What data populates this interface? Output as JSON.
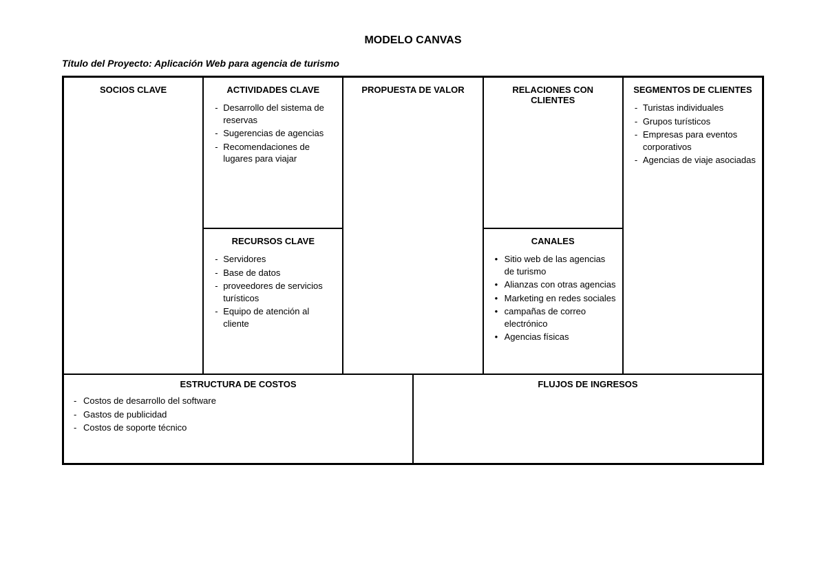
{
  "title": "MODELO CANVAS",
  "project_label": "Título del Proyecto:",
  "project_name": "Aplicación Web para agencia de turismo",
  "canvas": {
    "type": "business-model-canvas",
    "border_color": "#000000",
    "background_color": "#ffffff",
    "text_color": "#000000",
    "header_fontsize": 13,
    "item_fontsize": 13,
    "blocks": {
      "socios_clave": {
        "title": "SOCIOS CLAVE",
        "items": [],
        "list_style": "dash"
      },
      "actividades_clave": {
        "title": "ACTIVIDADES CLAVE",
        "items": [
          "Desarrollo del sistema de reservas",
          "Sugerencias de agencias",
          "Recomendaciones de lugares para viajar"
        ],
        "list_style": "dash"
      },
      "recursos_clave": {
        "title": "RECURSOS CLAVE",
        "items": [
          "Servidores",
          "Base de datos",
          "proveedores de servicios turísticos",
          "Equipo de atención al cliente"
        ],
        "list_style": "dash"
      },
      "propuesta_valor": {
        "title": "PROPUESTA DE VALOR",
        "items": [],
        "list_style": "dash"
      },
      "relaciones_clientes": {
        "title": "RELACIONES CON CLIENTES",
        "items": [],
        "list_style": "dash"
      },
      "canales": {
        "title": "CANALES",
        "items": [
          "Sitio web de las agencias de turismo",
          "Alianzas con otras agencias",
          "Marketing en redes sociales",
          "campañas de correo electrónico",
          "Agencias físicas"
        ],
        "list_style": "bullet"
      },
      "segmentos_clientes": {
        "title": "SEGMENTOS DE CLIENTES",
        "items": [
          "Turistas individuales",
          "Grupos turísticos",
          "Empresas para eventos corporativos",
          "Agencias de viaje asociadas"
        ],
        "list_style": "dash"
      },
      "estructura_costos": {
        "title": "ESTRUCTURA DE COSTOS",
        "items": [
          "Costos de desarrollo del software",
          "Gastos de publicidad",
          "Costos de soporte técnico"
        ],
        "list_style": "dash"
      },
      "flujos_ingresos": {
        "title": "FLUJOS DE INGRESOS",
        "items": [],
        "list_style": "dash"
      }
    }
  }
}
